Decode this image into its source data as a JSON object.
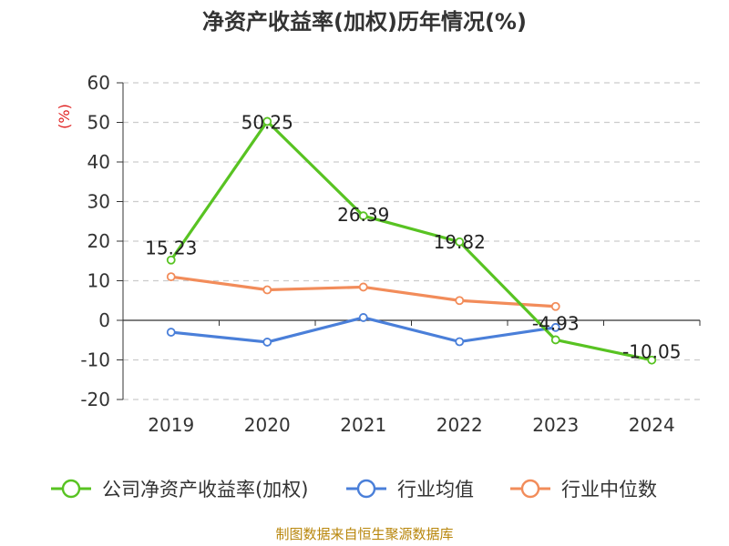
{
  "chart_data": {
    "type": "line",
    "title": "净资产收益率(加权)历年情况(%)",
    "ylabel": "(%)",
    "xlabel": "",
    "categories": [
      "2019",
      "2020",
      "2021",
      "2022",
      "2023",
      "2024"
    ],
    "ylim": [
      -20,
      60
    ],
    "yticks": [
      60,
      50,
      40,
      30,
      20,
      10,
      0,
      -10,
      -20
    ],
    "grid": true,
    "legend_position": "bottom",
    "series": [
      {
        "name": "公司净资产收益率(加权)",
        "color": "#58c322",
        "values": [
          15.23,
          50.25,
          26.39,
          19.82,
          -4.93,
          -10.05
        ],
        "labels": [
          "15.23",
          "50.25",
          "26.39",
          "19.82",
          "-4.93",
          "-10.05"
        ]
      },
      {
        "name": "行业均值",
        "color": "#4a7fd9",
        "values": [
          -3.0,
          -5.5,
          0.7,
          -5.4,
          -1.8,
          null
        ]
      },
      {
        "name": "行业中位数",
        "color": "#f28c5a",
        "values": [
          11.0,
          7.7,
          8.4,
          5.0,
          3.5,
          null
        ]
      }
    ]
  },
  "footer": {
    "source": "制图数据来自恒生聚源数据库"
  }
}
